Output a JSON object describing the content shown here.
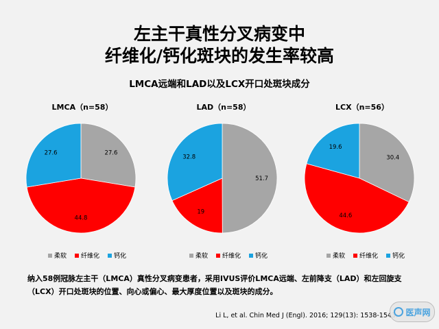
{
  "title": {
    "line1": "左主干真性分叉病变中",
    "line2": "纤维化/钙化斑块的发生率较高"
  },
  "subtitle": "LMCA远端和LAD以及LCX开口处斑块成分",
  "legend_labels": [
    "柔软",
    "纤维化",
    "钙化"
  ],
  "colors": {
    "柔软": "#a6a6a6",
    "纤维化": "#ff0000",
    "钙化": "#1ba3e0"
  },
  "chart_data": [
    {
      "type": "pie",
      "title": "LMCA（n=58）",
      "slices": [
        {
          "label": "柔软",
          "value": 27.6
        },
        {
          "label": "纤维化",
          "value": 44.8
        },
        {
          "label": "钙化",
          "value": 27.6
        }
      ],
      "legend": "bottom"
    },
    {
      "type": "pie",
      "title": "LAD（n=58）",
      "slices": [
        {
          "label": "柔软",
          "value": 51.7
        },
        {
          "label": "纤维化",
          "value": 19
        },
        {
          "label": "钙化",
          "value": 32.8
        }
      ],
      "legend": "bottom"
    },
    {
      "type": "pie",
      "title": "LCX（n=56）",
      "slices": [
        {
          "label": "柔软",
          "value": 30.4
        },
        {
          "label": "纤维化",
          "value": 44.6
        },
        {
          "label": "钙化",
          "value": 19.6
        }
      ],
      "legend": "bottom"
    }
  ],
  "note": "纳入58例冠脉左主干（LMCA）真性分叉病变患者，采用IVUS评价LMCA远端、左前降支（LAD）和左回旋支（LCX）开口处斑块的位置、向心或偏心、最大厚度位置以及斑块的成分。",
  "citation": "Li L, et al. Chin Med J (Engl). 2016; 129(13): 1538-1543.",
  "watermark": "医声网"
}
